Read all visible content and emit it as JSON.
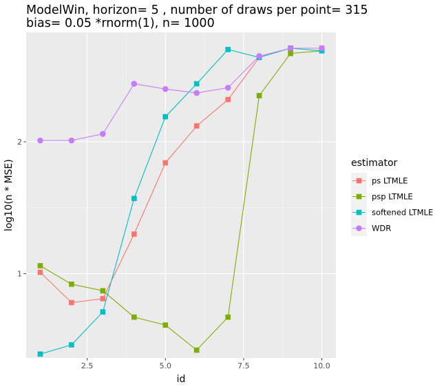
{
  "chart_data": {
    "type": "line",
    "title": "ModelWin, horizon= 5 , number of draws per point= 315",
    "subtitle": "bias= 0.05 *rnorm(1), n= 1000",
    "xlabel": "id",
    "ylabel": "log10(n * MSE)",
    "xlim": [
      0.55,
      10.45
    ],
    "ylim": [
      0.36,
      2.83
    ],
    "x_ticks": [
      2.5,
      5.0,
      7.5,
      10.0
    ],
    "x_tick_labels": [
      "2.5",
      "5.0",
      "7.5",
      "10.0"
    ],
    "y_ticks": [
      1,
      2
    ],
    "y_tick_labels": [
      "1",
      "2"
    ],
    "grid": true,
    "legend": {
      "title": "estimator",
      "position": "right"
    },
    "x": [
      1,
      2,
      3,
      4,
      5,
      6,
      7,
      8,
      9,
      10
    ],
    "series": [
      {
        "name": "ps LTMLE",
        "color": "#F8766D",
        "marker": "square",
        "values": [
          1.01,
          0.78,
          0.81,
          1.3,
          1.84,
          2.12,
          2.32,
          2.64,
          2.71,
          2.71
        ]
      },
      {
        "name": "psp LTMLE",
        "color": "#7CAE00",
        "marker": "square",
        "values": [
          1.06,
          0.92,
          0.87,
          0.67,
          0.61,
          0.42,
          0.67,
          2.35,
          2.67,
          2.69
        ]
      },
      {
        "name": "softened LTMLE",
        "color": "#00BFC4",
        "marker": "square",
        "values": [
          0.39,
          0.46,
          0.71,
          1.57,
          2.19,
          2.44,
          2.7,
          2.64,
          2.71,
          2.69
        ]
      },
      {
        "name": "WDR",
        "color": "#C77CFF",
        "marker": "circle",
        "values": [
          2.01,
          2.01,
          2.06,
          2.44,
          2.4,
          2.37,
          2.41,
          2.65,
          2.71,
          2.71
        ]
      }
    ]
  }
}
